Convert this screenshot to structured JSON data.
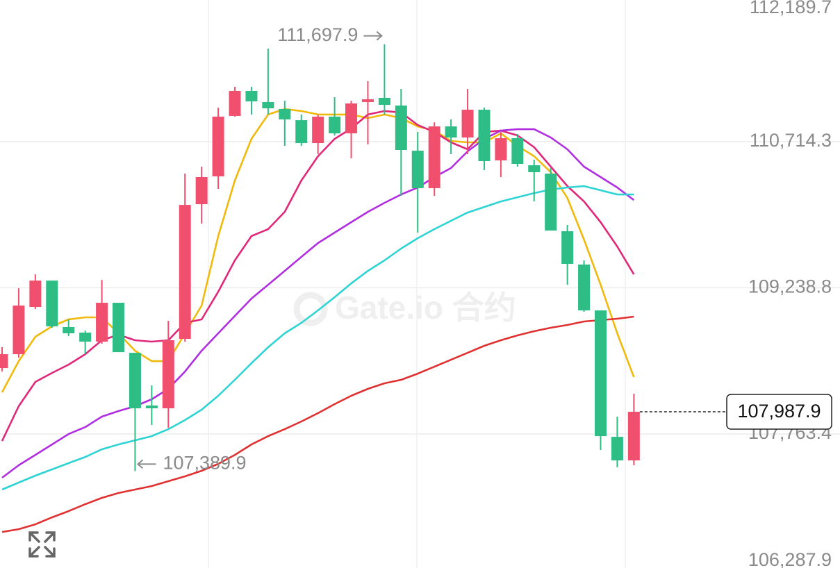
{
  "chart_data": {
    "type": "candlestick",
    "watermark": "Gate.io 合约",
    "ylim": [
      106411,
      112144
    ],
    "yticks": [
      {
        "value": 112189.7,
        "label": "112,189.7"
      },
      {
        "value": 110714.3,
        "label": "110,714.3"
      },
      {
        "value": 109238.8,
        "label": "109,238.8"
      },
      {
        "value": 107763.4,
        "label": "107,763.4"
      },
      {
        "value": 106287.9,
        "label": "106,287.9"
      }
    ],
    "grid": true,
    "up_color": "#f0506e",
    "down_color": "#2ebd85",
    "candles": {
      "open": [
        108429,
        108569,
        109046,
        109312,
        108843,
        108787,
        108696,
        109088,
        108583,
        108051,
        108023,
        108724,
        110083,
        110364,
        110974,
        111226,
        111114,
        111044,
        110931,
        110700,
        110967,
        110798,
        111114,
        111156,
        111079,
        110623,
        110245,
        110868,
        110756,
        111037,
        110525,
        110749,
        110476,
        110392,
        109810,
        109474,
        109011,
        107735,
        107497
      ],
      "high": [
        108640,
        109235,
        109375,
        109312,
        108920,
        108808,
        109319,
        109088,
        108583,
        108254,
        108906,
        110392,
        110462,
        111058,
        111268,
        111268,
        111653,
        111128,
        110988,
        110988,
        111163,
        111128,
        111324,
        111697.9,
        111247,
        110812,
        110910,
        110939,
        111247,
        111058,
        110812,
        110791,
        110532,
        110448,
        109873,
        109516,
        109011,
        107939,
        108170
      ],
      "low": [
        108394,
        108534,
        109025,
        108836,
        108752,
        108569,
        108675,
        108590,
        107389.9,
        107855,
        107826,
        108696,
        109887,
        110238,
        110967,
        110988,
        110988,
        110672,
        110672,
        110588,
        110777,
        110546,
        110686,
        110988,
        110167,
        109796,
        110167,
        110588,
        110588,
        110427,
        110357,
        110462,
        110111,
        109817,
        109270,
        108997,
        107602,
        107427,
        107448
      ],
      "close": [
        108569,
        109060,
        109312,
        108850,
        108780,
        108696,
        109088,
        108590,
        108023,
        108023,
        108710,
        110076,
        110357,
        110967,
        111226,
        111121,
        111051,
        110939,
        110700,
        110967,
        110798,
        111100,
        111142,
        111086,
        110630,
        110245,
        110868,
        110756,
        111037,
        110518,
        110749,
        110490,
        110406,
        109817,
        109481,
        109011,
        107742,
        107497,
        107987.9
      ]
    },
    "lines": [
      {
        "color": "#f0b90b",
        "values": [
          108184,
          108499,
          108745,
          108850,
          108920,
          108941,
          108941,
          108780,
          108604,
          108499,
          108499,
          108780,
          109060,
          109761,
          110322,
          110742,
          110988,
          111044,
          111023,
          110988,
          110988,
          110988,
          110952,
          110988,
          110952,
          110868,
          110826,
          110721,
          110707,
          110707,
          110798,
          110672,
          110567,
          110406,
          110146,
          109726,
          109270,
          108780,
          108338
        ]
      },
      {
        "color": "#e0287a",
        "values": [
          107693,
          108044,
          108289,
          108380,
          108464,
          108569,
          108710,
          108766,
          108710,
          108696,
          108710,
          108885,
          108920,
          109200,
          109516,
          109761,
          109831,
          110006,
          110322,
          110567,
          110742,
          110847,
          110988,
          111023,
          111009,
          110882,
          110812,
          110707,
          110637,
          110812,
          110826,
          110777,
          110658,
          110462,
          110266,
          110111,
          109901,
          109656,
          109375
        ]
      },
      {
        "color": "#b02ee0",
        "values": [
          107322,
          107448,
          107553,
          107658,
          107763,
          107833,
          107939,
          107995,
          108044,
          108114,
          108219,
          108394,
          108604,
          108780,
          108955,
          109130,
          109270,
          109410,
          109551,
          109691,
          109796,
          109901,
          110006,
          110097,
          110181,
          110252,
          110357,
          110448,
          110616,
          110742,
          110826,
          110840,
          110840,
          110756,
          110637,
          110462,
          110357,
          110252,
          110125
        ]
      },
      {
        "color": "#2ed3d3",
        "values": [
          107203,
          107273,
          107343,
          107406,
          107469,
          107532,
          107609,
          107658,
          107700,
          107742,
          107812,
          107904,
          108009,
          108149,
          108310,
          108478,
          108639,
          108780,
          108885,
          109011,
          109144,
          109284,
          109410,
          109516,
          109635,
          109740,
          109831,
          109915,
          109999,
          110055,
          110111,
          110153,
          110195,
          110231,
          110252,
          110266,
          110224,
          110181,
          110181
        ]
      },
      {
        "color": "#e03030",
        "values": [
          106775,
          106803,
          106852,
          106922,
          106985,
          107055,
          107119,
          107168,
          107203,
          107238,
          107287,
          107336,
          107392,
          107462,
          107553,
          107658,
          107742,
          107812,
          107890,
          107974,
          108065,
          108149,
          108219,
          108275,
          108310,
          108373,
          108443,
          108513,
          108583,
          108654,
          108710,
          108759,
          108801,
          108836,
          108864,
          108899,
          108913,
          108927,
          108948
        ]
      }
    ],
    "high_label": "111,697.9",
    "low_label": "107,389.9",
    "last_label": "107,987.9"
  }
}
